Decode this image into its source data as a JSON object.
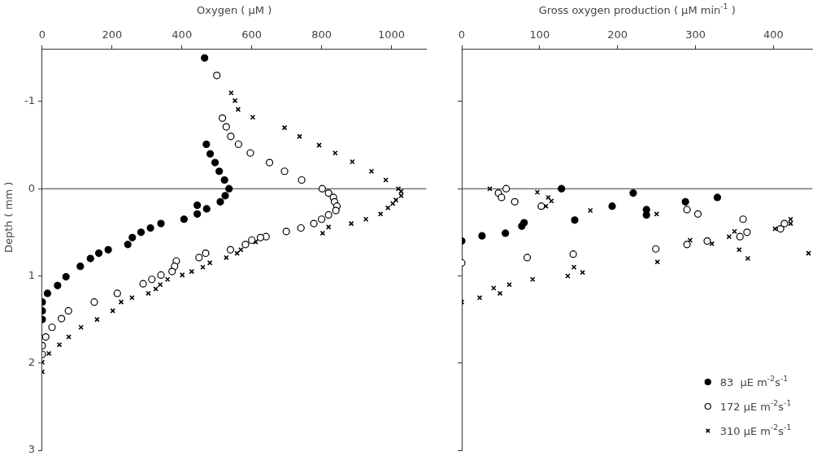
{
  "chart_data": [
    {
      "type": "scatter",
      "xlabel": "Oxygen ( µM )",
      "ylabel": "Depth ( mm )",
      "xlim": [
        0,
        1100
      ],
      "xticks": [
        0,
        200,
        400,
        600,
        800,
        1000
      ],
      "ylim": [
        3,
        -1.6
      ],
      "yticks": [
        -1,
        0,
        1,
        2,
        3
      ],
      "grid": false,
      "legend": false,
      "ref_lines": [
        {
          "axis": "y",
          "value": 0,
          "color": "#333333"
        }
      ],
      "series": [
        {
          "color": "#000000",
          "marker": "circle",
          "x": [
            465,
            470,
            481,
            495,
            507,
            522,
            535,
            524,
            510,
            444,
            471,
            444,
            406,
            340,
            310,
            283,
            258,
            245,
            189,
            162,
            138,
            109,
            68,
            44,
            15,
            0,
            0,
            0
          ],
          "values": [
            -1.5,
            -0.51,
            -0.4,
            -0.3,
            -0.2,
            -0.1,
            0,
            0.08,
            0.15,
            0.19,
            0.23,
            0.29,
            0.35,
            0.4,
            0.45,
            0.5,
            0.56,
            0.64,
            0.7,
            0.74,
            0.8,
            0.89,
            1.01,
            1.11,
            1.2,
            1.3,
            1.4,
            1.5
          ]
        },
        {
          "color": "#ffffff",
          "marker": "circle",
          "x": [
            500,
            516,
            527,
            540,
            562,
            596,
            651,
            694,
            743,
            802,
            820,
            834,
            837,
            844,
            841,
            820,
            800,
            778,
            741,
            699,
            641,
            625,
            600,
            582,
            539,
            468,
            449,
            384,
            379,
            372,
            340,
            314,
            289,
            215,
            149,
            75,
            55,
            28,
            10,
            0,
            0
          ],
          "values": [
            -1.3,
            -0.81,
            -0.71,
            -0.6,
            -0.51,
            -0.41,
            -0.3,
            -0.2,
            -0.1,
            0,
            0.05,
            0.1,
            0.15,
            0.2,
            0.25,
            0.3,
            0.35,
            0.4,
            0.45,
            0.49,
            0.55,
            0.56,
            0.59,
            0.64,
            0.7,
            0.74,
            0.79,
            0.83,
            0.89,
            0.95,
            0.99,
            1.04,
            1.09,
            1.2,
            1.3,
            1.4,
            1.49,
            1.59,
            1.7,
            1.8,
            1.9
          ]
        },
        {
          "color": "#000000",
          "marker": "cross",
          "x": [
            541,
            552,
            561,
            603,
            694,
            737,
            793,
            839,
            888,
            943,
            984,
            1020,
            1028,
            1028,
            1013,
            1004,
            990,
            969,
            927,
            885,
            820,
            803,
            611,
            569,
            558,
            527,
            480,
            460,
            428,
            401,
            359,
            338,
            325,
            304,
            257,
            226,
            202,
            157,
            111,
            76,
            49,
            19,
            0,
            0
          ],
          "values": [
            -1.1,
            -1.01,
            -0.91,
            -0.82,
            -0.7,
            -0.6,
            -0.5,
            -0.41,
            -0.31,
            -0.2,
            -0.1,
            0,
            0.03,
            0.08,
            0.13,
            0.17,
            0.22,
            0.29,
            0.35,
            0.4,
            0.44,
            0.51,
            0.61,
            0.7,
            0.74,
            0.79,
            0.85,
            0.9,
            0.95,
            0.99,
            1.04,
            1.1,
            1.15,
            1.2,
            1.25,
            1.3,
            1.4,
            1.5,
            1.59,
            1.7,
            1.79,
            1.89,
            1.99,
            2.1
          ]
        }
      ]
    },
    {
      "type": "scatter",
      "xlabel": "Gross oxygen production ( µM min$^{-1}$ )",
      "xlim": [
        0,
        450
      ],
      "xticks": [
        0,
        100,
        200,
        300,
        400
      ],
      "ylim": [
        3,
        -1.6
      ],
      "yticks": [
        -1,
        0,
        1,
        2,
        3
      ],
      "tick_labels": "x",
      "grid": false,
      "legend": "bottom right",
      "ref_lines": [
        {
          "axis": "y",
          "value": 0,
          "color": "#333333"
        }
      ],
      "series": [
        {
          "name": "83  µE m$^{-2}$s$^{-1}$",
          "color": "#000000",
          "marker": "circle",
          "x": [
            0,
            26,
            56,
            77,
            80,
            145,
            193,
            220,
            237,
            237,
            287,
            328,
            128
          ],
          "values": [
            0.6,
            0.54,
            0.51,
            0.43,
            0.39,
            0.36,
            0.2,
            0.05,
            0.24,
            0.3,
            0.15,
            0.1,
            0
          ]
        },
        {
          "name": "172 µE m$^{-2}$s$^{-1}$",
          "color": "#ffffff",
          "marker": "circle",
          "x": [
            0,
            57,
            47,
            51,
            68,
            84,
            102,
            143,
            249,
            289,
            303,
            289,
            315,
            361,
            357,
            366,
            409,
            414
          ],
          "values": [
            0.85,
            0,
            0.05,
            0.1,
            0.15,
            0.79,
            0.2,
            0.75,
            0.69,
            0.24,
            0.29,
            0.64,
            0.6,
            0.35,
            0.55,
            0.5,
            0.46,
            0.4
          ]
        },
        {
          "name": "310 µE m$^{-2}$s$^{-1}$",
          "color": "#000000",
          "marker": "cross",
          "x": [
            36,
            97,
            111,
            115,
            108,
            165,
            250,
            251,
            293,
            321,
            343,
            350,
            356,
            367,
            402,
            422,
            422,
            445,
            136,
            144,
            155,
            91,
            61,
            49,
            41,
            23,
            0
          ],
          "values": [
            0,
            0.04,
            0.1,
            0.14,
            0.2,
            0.25,
            0.29,
            0.84,
            0.59,
            0.63,
            0.55,
            0.49,
            0.7,
            0.8,
            0.46,
            0.35,
            0.4,
            0.74,
            1.0,
            0.9,
            0.96,
            1.04,
            1.1,
            1.2,
            1.14,
            1.25,
            1.3
          ]
        }
      ]
    }
  ]
}
